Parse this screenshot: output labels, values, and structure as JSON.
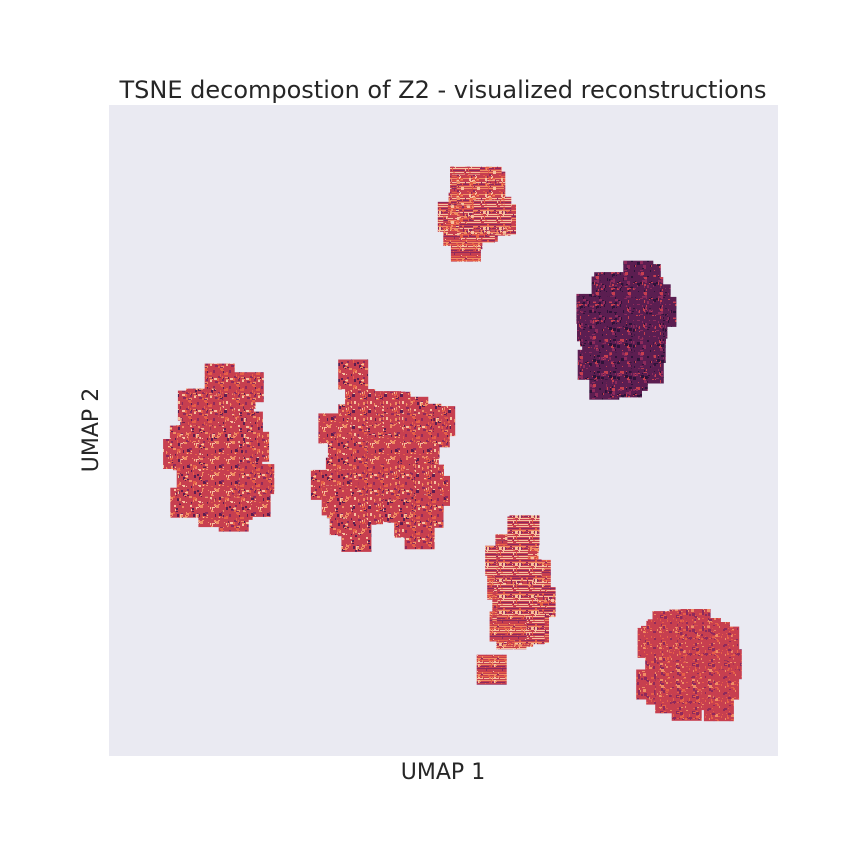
{
  "chart_data": {
    "type": "scatter",
    "title": "TSNE decompostion of Z2 - visualized reconstructions",
    "xlabel": "UMAP 1",
    "ylabel": "UMAP 2",
    "xlim": [
      0,
      100
    ],
    "ylim": [
      0,
      100
    ],
    "grid": false,
    "ticks_visible": false,
    "background_color": "#eaeaf2",
    "marker": "image-thumbnail",
    "palette": [
      "#2d1339",
      "#5b1e51",
      "#8e2a5c",
      "#c73f4f",
      "#e65f47",
      "#f08d63",
      "#f6c19f"
    ],
    "clusters": [
      {
        "center": [
          17,
          47
        ],
        "spread": [
          12,
          19
        ],
        "count": 190,
        "tone": "mixed"
      },
      {
        "center": [
          41,
          46
        ],
        "spread": [
          17,
          20
        ],
        "count": 210,
        "tone": "mixed"
      },
      {
        "center": [
          55,
          85
        ],
        "spread": [
          6,
          12
        ],
        "count": 45,
        "tone": "striped"
      },
      {
        "center": [
          77,
          66
        ],
        "spread": [
          10,
          18
        ],
        "count": 110,
        "tone": "dark"
      },
      {
        "center": [
          61,
          26
        ],
        "spread": [
          7,
          20
        ],
        "count": 55,
        "tone": "striped"
      },
      {
        "center": [
          87,
          14
        ],
        "spread": [
          11,
          14
        ],
        "count": 110,
        "tone": "textured"
      }
    ]
  }
}
